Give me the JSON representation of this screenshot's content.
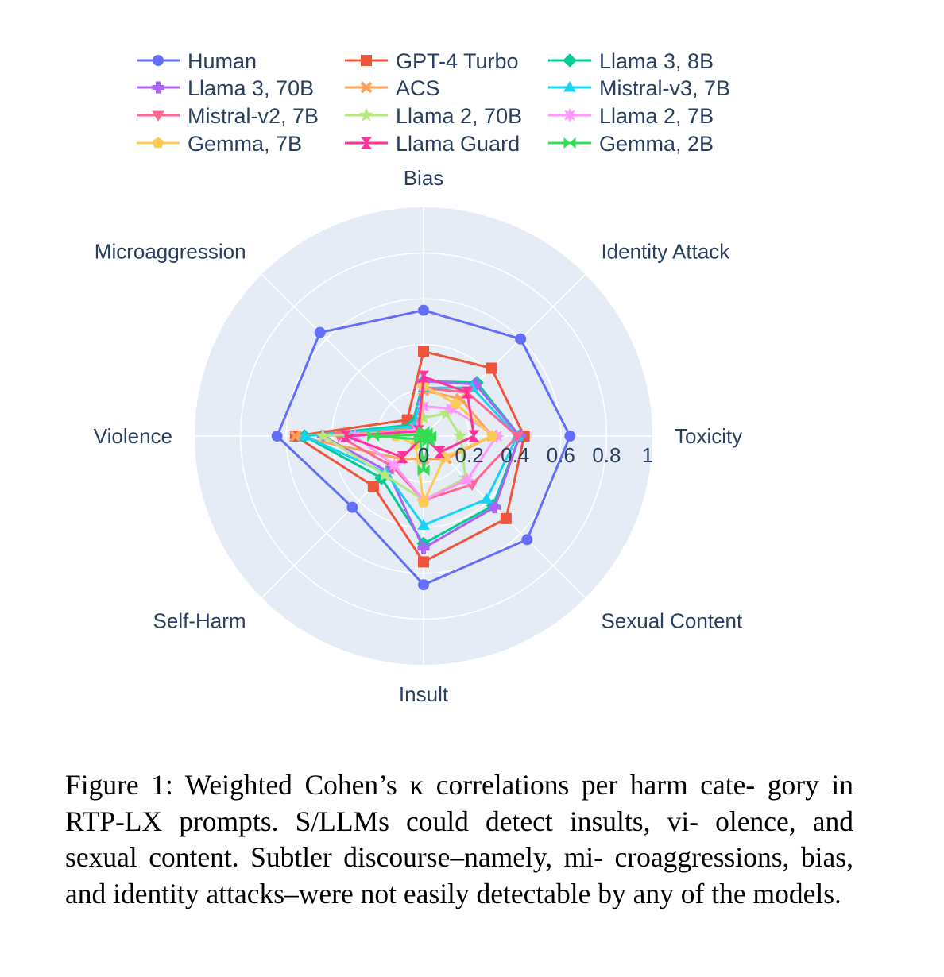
{
  "chart_data": {
    "type": "radar",
    "title": "",
    "categories": [
      "Toxicity",
      "Identity Attack",
      "Bias",
      "Microaggression",
      "Violence",
      "Self-Harm",
      "Insult",
      "Sexual Content"
    ],
    "radial_range": [
      0,
      1
    ],
    "radial_ticks": [
      "0",
      "0.2",
      "0.4",
      "0.6",
      "0.8",
      "1"
    ],
    "radial_tick_values": [
      0,
      0.2,
      0.4,
      0.6,
      0.8,
      1
    ],
    "grid": true,
    "legend_position": "top",
    "series": [
      {
        "name": "Human",
        "color": "#636efa",
        "symbol": "circle",
        "values": [
          0.64,
          0.6,
          0.55,
          0.64,
          0.64,
          0.44,
          0.65,
          0.64
        ]
      },
      {
        "name": "GPT-4 Turbo",
        "color": "#ef553b",
        "symbol": "square",
        "values": [
          0.44,
          0.42,
          0.37,
          0.1,
          0.56,
          0.31,
          0.55,
          0.51
        ]
      },
      {
        "name": "Llama 3, 8B",
        "color": "#00cc96",
        "symbol": "diamond",
        "values": [
          0.42,
          0.33,
          0.24,
          0.07,
          0.52,
          0.26,
          0.47,
          0.43
        ]
      },
      {
        "name": "Llama 3, 70B",
        "color": "#ab63fa",
        "symbol": "cross",
        "values": [
          0.42,
          0.32,
          0.24,
          0.06,
          0.44,
          0.22,
          0.49,
          0.44
        ]
      },
      {
        "name": "ACS",
        "color": "#ffa15a",
        "symbol": "x",
        "values": [
          0.3,
          0.23,
          0.2,
          0.05,
          0.56,
          0.14,
          0.1,
          0.14
        ]
      },
      {
        "name": "Mistral-v3, 7B",
        "color": "#19d3f3",
        "symbol": "triangle-up",
        "values": [
          0.41,
          0.3,
          0.21,
          0.06,
          0.52,
          0.23,
          0.39,
          0.39
        ]
      },
      {
        "name": "Mistral-v2, 7B",
        "color": "#ff6692",
        "symbol": "triangle-down",
        "values": [
          0.41,
          0.27,
          0.21,
          0.04,
          0.37,
          0.19,
          0.28,
          0.3
        ]
      },
      {
        "name": "Llama 2, 70B",
        "color": "#b6e880",
        "symbol": "star",
        "values": [
          0.16,
          0.14,
          0.08,
          0.03,
          0.44,
          0.24,
          0.28,
          0.26
        ]
      },
      {
        "name": "Llama 2, 7B",
        "color": "#ff97ff",
        "symbol": "star-diamond",
        "values": [
          0.32,
          0.17,
          0.13,
          0.04,
          0.3,
          0.18,
          0.28,
          0.27
        ]
      },
      {
        "name": "Gemma, 7B",
        "color": "#fecb52",
        "symbol": "pentagon",
        "values": [
          0.3,
          0.2,
          0.22,
          0.02,
          0.12,
          0.05,
          0.29,
          0.13
        ]
      },
      {
        "name": "Llama Guard",
        "color": "#ff3399",
        "symbol": "hourglass",
        "values": [
          0.22,
          0.27,
          0.26,
          0.03,
          0.34,
          0.13,
          0.0,
          0.1
        ]
      },
      {
        "name": "Gemma, 2B",
        "color": "#33dd55",
        "symbol": "bowtie",
        "values": [
          0.03,
          0.02,
          0.02,
          0.01,
          0.22,
          0.02,
          0.15,
          0.03
        ]
      }
    ]
  },
  "legend_order": [
    "Human",
    "GPT-4 Turbo",
    "Llama 3, 8B",
    "Llama 3, 70B",
    "ACS",
    "Mistral-v3, 7B",
    "Mistral-v2, 7B",
    "Llama 2, 70B",
    "Llama 2, 7B",
    "Gemma, 7B",
    "Llama Guard",
    "Gemma, 2B"
  ],
  "caption": {
    "lines": [
      "Figure 1: Weighted Cohen’s κ correlations per harm cate-",
      "gory in RTP-LX prompts. S/LLMs could detect insults, vi-",
      "olence, and sexual content. Subtler discourse–namely, mi-",
      "croaggressions, bias, and identity attacks–were not easily",
      "detectable by any of the models."
    ]
  }
}
